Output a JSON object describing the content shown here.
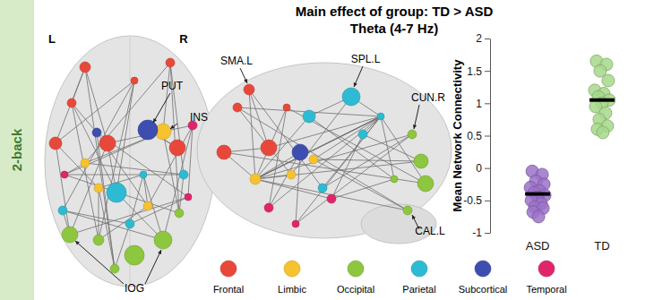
{
  "panel_label": "2-back",
  "brain": {
    "hemisphere_labels": [
      "L",
      "R"
    ],
    "top_view_labels": [
      "PUT",
      "INS",
      "IOG"
    ],
    "side_view_labels": [
      "SMA.L",
      "SPL.L",
      "CUN.R",
      "CAL.L"
    ]
  },
  "lobes": [
    {
      "label": "Frontal",
      "color": "#e8483a"
    },
    {
      "label": "Limbic",
      "color": "#f6c22e"
    },
    {
      "label": "Occipital",
      "color": "#8dc63f"
    },
    {
      "label": "Parietal",
      "color": "#2dbbd3"
    },
    {
      "label": "Subcortical",
      "color": "#3d4eb0"
    },
    {
      "label": "Temporal",
      "color": "#e0256b"
    }
  ],
  "chart_data": {
    "type": "scatter",
    "title": "Main effect of group: TD > ASD",
    "subtitle": "Theta (4-7 Hz)",
    "y_label": "Mean Network Connectivity",
    "categories": [
      "ASD",
      "TD"
    ],
    "values": [
      [
        -0.05,
        -0.1,
        -0.2,
        -0.25,
        -0.3,
        -0.35,
        -0.38,
        -0.42,
        -0.45,
        -0.5,
        -0.55,
        -0.6,
        -0.62,
        -0.68,
        -0.75
      ],
      [
        1.65,
        1.6,
        1.5,
        1.35,
        1.2,
        1.15,
        1.1,
        1.05,
        1.0,
        0.95,
        0.85,
        0.75,
        0.65,
        0.6,
        0.55
      ]
    ],
    "means": [
      -0.4,
      1.05
    ],
    "colors": [
      "#9b72c9",
      "#a6d889"
    ],
    "ylim": [
      -1,
      2
    ],
    "yticks": [
      -1,
      -0.5,
      0,
      0.5,
      1,
      1.5,
      2
    ]
  }
}
